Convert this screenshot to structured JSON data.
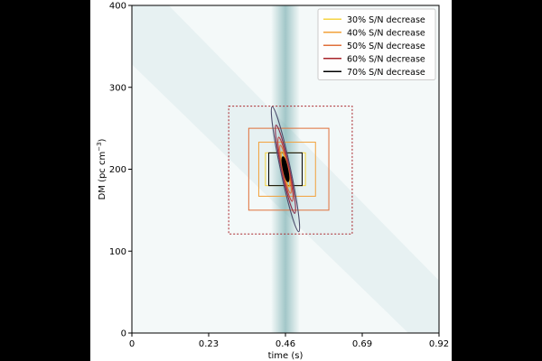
{
  "chart_data": {
    "type": "heatmap",
    "title": "",
    "xlabel": "time (s)",
    "ylabel_main": "DM (pc cm",
    "ylabel_sup": "−3",
    "ylabel_close": ")",
    "xlim": [
      0,
      0.92
    ],
    "ylim": [
      0,
      400
    ],
    "xticks": [
      0,
      0.23,
      0.46,
      0.69,
      0.92
    ],
    "xtick_labels": [
      "0",
      "0.23",
      "0.46",
      "0.69",
      "0.92"
    ],
    "yticks": [
      0,
      100,
      200,
      300,
      400
    ],
    "ytick_labels": [
      "0",
      "100",
      "200",
      "300",
      "400"
    ],
    "colormap_color": "#5f9ea0",
    "pulse": {
      "time": 0.46,
      "dm": 200
    },
    "boxes": [
      {
        "label": "30% S/N decrease",
        "color": "#f5d442",
        "t0": 0.4,
        "t1": 0.52,
        "dm0": 180,
        "dm1": 220
      },
      {
        "label": "40% S/N decrease",
        "color": "#f2a13a",
        "t0": 0.38,
        "t1": 0.55,
        "dm0": 167,
        "dm1": 233
      },
      {
        "label": "50% S/N decrease",
        "color": "#e0703a",
        "t0": 0.35,
        "t1": 0.59,
        "dm0": 150,
        "dm1": 250
      },
      {
        "label": "60% S/N decrease",
        "color": "#a8242a",
        "t0": 0.29,
        "t1": 0.66,
        "dm0": 121,
        "dm1": 277
      },
      {
        "label": "70% S/N decrease",
        "color": "#000000",
        "t0": 0.41,
        "t1": 0.51,
        "dm0": 180,
        "dm1": 220
      }
    ],
    "contours": [
      {
        "color": "#4a4a6a",
        "dm_half": 78,
        "t_half": 0.015
      },
      {
        "color": "#8a2a4a",
        "dm_half": 55,
        "t_half": 0.012
      },
      {
        "color": "#c04040",
        "dm_half": 40,
        "t_half": 0.01
      },
      {
        "color": "#e07030",
        "dm_half": 30,
        "t_half": 0.008
      },
      {
        "color": "#f0b030",
        "dm_half": 22,
        "t_half": 0.006
      },
      {
        "color": "#000000",
        "dm_half": 15,
        "t_half": 0.004
      }
    ],
    "legend": {
      "placement": "top-right",
      "entries": [
        {
          "label": "30% S/N decrease",
          "color": "#f5d442"
        },
        {
          "label": "40% S/N decrease",
          "color": "#f2a13a"
        },
        {
          "label": "50% S/N decrease",
          "color": "#e0703a"
        },
        {
          "label": "60% S/N decrease",
          "color": "#a8242a"
        },
        {
          "label": "70% S/N decrease",
          "color": "#000000"
        }
      ]
    }
  }
}
